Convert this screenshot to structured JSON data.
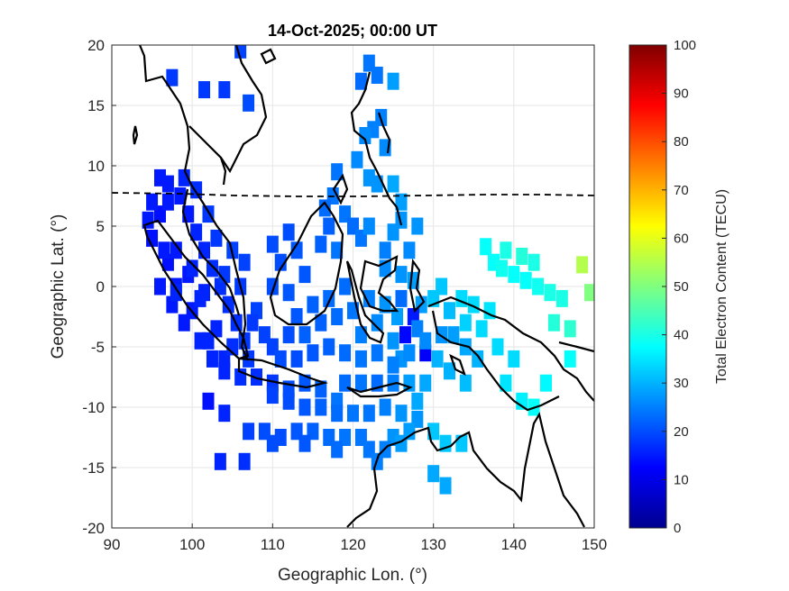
{
  "chart_data": {
    "type": "heatmap",
    "title": "14-Oct-2025; 00:00 UT",
    "xlabel": "Geographic Lon. (°)",
    "ylabel": "Geographic Lat. (°)",
    "xlim": [
      90,
      150
    ],
    "ylim": [
      -20,
      20
    ],
    "xticks": [
      "90",
      "100",
      "110",
      "120",
      "130",
      "140",
      "150"
    ],
    "yticks": [
      "20",
      "15",
      "10",
      "5",
      "0",
      "-5",
      "-10",
      "-15",
      "-20"
    ],
    "grid": true,
    "colorbar": {
      "label": "Total Electron Content (TECU)",
      "range": [
        0,
        100
      ],
      "ticks": [
        "0",
        "10",
        "20",
        "30",
        "40",
        "50",
        "60",
        "70",
        "80",
        "90",
        "100"
      ],
      "colormap": "jet"
    },
    "cells_note_units": "lon, lat, TECU",
    "cells": [
      [
        97.5,
        17.3,
        18
      ],
      [
        101.5,
        16.3,
        18
      ],
      [
        104,
        16.3,
        18
      ],
      [
        106,
        19.6,
        19
      ],
      [
        107,
        15.2,
        20
      ],
      [
        121,
        17,
        23
      ],
      [
        122,
        18.5,
        24
      ],
      [
        123,
        17.5,
        24
      ],
      [
        125,
        17,
        28
      ],
      [
        123.5,
        14,
        25
      ],
      [
        122.5,
        13,
        25
      ],
      [
        121.5,
        12.5,
        26
      ],
      [
        120.5,
        10.5,
        26
      ],
      [
        122,
        9,
        27
      ],
      [
        124,
        11.5,
        26
      ],
      [
        125,
        8.5,
        29
      ],
      [
        126,
        7,
        28
      ],
      [
        123,
        8.5,
        27
      ],
      [
        118,
        9.5,
        24
      ],
      [
        117.5,
        7.5,
        24
      ],
      [
        116.5,
        6.5,
        23
      ],
      [
        119,
        6,
        24
      ],
      [
        117,
        5,
        22
      ],
      [
        116,
        3.5,
        22
      ],
      [
        118,
        3,
        24
      ],
      [
        120,
        5,
        23
      ],
      [
        121,
        4,
        24
      ],
      [
        122,
        5,
        26
      ],
      [
        124,
        3,
        25
      ],
      [
        125,
        4.5,
        27
      ],
      [
        126,
        5.5,
        27
      ],
      [
        127,
        3,
        26
      ],
      [
        128,
        5,
        27
      ],
      [
        124,
        1.5,
        26
      ],
      [
        126,
        1,
        27
      ],
      [
        127.5,
        0.5,
        28
      ],
      [
        128.5,
        -1.5,
        28
      ],
      [
        126,
        -1,
        23
      ],
      [
        112,
        4.5,
        20
      ],
      [
        110,
        3.5,
        20
      ],
      [
        111,
        2,
        20
      ],
      [
        113,
        3,
        21
      ],
      [
        114,
        1,
        21
      ],
      [
        110,
        0,
        20
      ],
      [
        112,
        -0.5,
        21
      ],
      [
        115,
        -1.5,
        22
      ],
      [
        113,
        -2.5,
        21
      ],
      [
        116,
        -3,
        22
      ],
      [
        114,
        -4,
        22
      ],
      [
        117,
        -1,
        23
      ],
      [
        118,
        -2.5,
        23
      ],
      [
        119,
        0,
        23
      ],
      [
        120,
        -2,
        24
      ],
      [
        121,
        -4,
        25
      ],
      [
        122,
        -1,
        25
      ],
      [
        123,
        -3,
        26
      ],
      [
        124,
        -1.5,
        27
      ],
      [
        125,
        -4.5,
        27
      ],
      [
        125.5,
        -2.5,
        28
      ],
      [
        126.5,
        -4,
        13
      ],
      [
        127.5,
        -2.5,
        15
      ],
      [
        129,
        -5.5,
        12
      ],
      [
        128,
        -3.5,
        25
      ],
      [
        130,
        -1,
        32
      ],
      [
        131,
        0,
        32
      ],
      [
        132,
        -2,
        31
      ],
      [
        133.5,
        -1,
        34
      ],
      [
        134,
        -3,
        33
      ],
      [
        135,
        -1.5,
        34
      ],
      [
        136,
        -3.5,
        34
      ],
      [
        137,
        -2,
        35
      ],
      [
        136.5,
        3.3,
        38
      ],
      [
        137.5,
        2,
        38
      ],
      [
        138.5,
        1.5,
        39
      ],
      [
        140,
        1,
        38
      ],
      [
        141.5,
        0.5,
        38
      ],
      [
        143,
        0,
        39
      ],
      [
        139,
        3,
        40
      ],
      [
        141,
        2.5,
        41
      ],
      [
        142.5,
        2,
        40
      ],
      [
        144.5,
        -0.5,
        40
      ],
      [
        146,
        -1,
        40
      ],
      [
        145,
        -3,
        41
      ],
      [
        147,
        -3.5,
        42
      ],
      [
        148.5,
        1.8,
        55
      ],
      [
        149.5,
        -0.5,
        50
      ],
      [
        138,
        -5,
        34
      ],
      [
        140,
        -6,
        34
      ],
      [
        139,
        -8,
        35
      ],
      [
        141,
        -9.5,
        36
      ],
      [
        142.5,
        -10,
        38
      ],
      [
        144,
        -8,
        37
      ],
      [
        147,
        -6,
        38
      ],
      [
        134,
        -8,
        31
      ],
      [
        132,
        -7,
        30
      ],
      [
        130.5,
        -6,
        30
      ],
      [
        129,
        -8,
        29
      ],
      [
        128,
        -9.5,
        29
      ],
      [
        126,
        -6,
        27
      ],
      [
        127,
        -8,
        28
      ],
      [
        125,
        -8,
        25
      ],
      [
        123,
        -8,
        23
      ],
      [
        121,
        -8,
        24
      ],
      [
        119,
        -8,
        23
      ],
      [
        118,
        -9.5,
        24
      ],
      [
        116,
        -8.5,
        22
      ],
      [
        114,
        -8,
        21
      ],
      [
        112,
        -8.5,
        20
      ],
      [
        110,
        -8,
        18
      ],
      [
        108,
        -7.5,
        17
      ],
      [
        106,
        -7.5,
        17
      ],
      [
        104,
        -6,
        16
      ],
      [
        102,
        -4.5,
        16
      ],
      [
        100,
        -2,
        15
      ],
      [
        98,
        0,
        15
      ],
      [
        97,
        2,
        14
      ],
      [
        95,
        4,
        14
      ],
      [
        94.5,
        5.5,
        15
      ],
      [
        96,
        6,
        14
      ],
      [
        97,
        8.5,
        15
      ],
      [
        98.5,
        7.5,
        15
      ],
      [
        99.5,
        6,
        15
      ],
      [
        100.5,
        4.5,
        16
      ],
      [
        101.5,
        3,
        16
      ],
      [
        102.5,
        1.5,
        17
      ],
      [
        103.5,
        0,
        17
      ],
      [
        104.5,
        -1.5,
        17
      ],
      [
        105.5,
        -3,
        17
      ],
      [
        106.5,
        -4.5,
        18
      ],
      [
        107,
        -6,
        18
      ],
      [
        105,
        -5,
        17
      ],
      [
        103,
        -3.5,
        16
      ],
      [
        101,
        -1,
        16
      ],
      [
        99.5,
        1,
        15
      ],
      [
        98,
        3,
        15
      ],
      [
        96.5,
        3,
        15
      ],
      [
        96,
        0,
        15
      ],
      [
        97.5,
        -1.5,
        15
      ],
      [
        99,
        -3,
        15
      ],
      [
        101,
        -4.5,
        16
      ],
      [
        102.5,
        -6,
        16
      ],
      [
        104,
        -7,
        16
      ],
      [
        98,
        -0.5,
        16
      ],
      [
        100,
        1.5,
        16
      ],
      [
        101.5,
        -0.5,
        16
      ],
      [
        104,
        1,
        18
      ],
      [
        106,
        0,
        18
      ],
      [
        106.5,
        2,
        19
      ],
      [
        105,
        3,
        19
      ],
      [
        103,
        4,
        18
      ],
      [
        102,
        6,
        18
      ],
      [
        100.5,
        8,
        17
      ],
      [
        99,
        9,
        16
      ],
      [
        108,
        -2,
        19
      ],
      [
        109,
        -4,
        19
      ],
      [
        107.5,
        -3,
        18
      ],
      [
        110,
        -5,
        19
      ],
      [
        111,
        -6,
        20
      ],
      [
        112,
        -4,
        20
      ],
      [
        113,
        -6,
        20
      ],
      [
        115,
        -5.5,
        21
      ],
      [
        117,
        -5,
        22
      ],
      [
        119,
        -5.5,
        23
      ],
      [
        121,
        -6,
        24
      ],
      [
        123,
        -5.5,
        24
      ],
      [
        125,
        -6.5,
        25
      ],
      [
        127,
        -5.5,
        26
      ],
      [
        129,
        -4.5,
        26
      ],
      [
        131,
        -4,
        27
      ],
      [
        132.5,
        -4,
        28
      ],
      [
        134,
        -5,
        29
      ],
      [
        135.5,
        -6,
        30
      ],
      [
        110,
        -9,
        19
      ],
      [
        112,
        -9.5,
        20
      ],
      [
        114,
        -10,
        21
      ],
      [
        116,
        -10,
        22
      ],
      [
        118,
        -10.5,
        23
      ],
      [
        120,
        -10.5,
        24
      ],
      [
        122,
        -10.5,
        24
      ],
      [
        124,
        -10,
        25
      ],
      [
        126,
        -10.5,
        27
      ],
      [
        128,
        -11,
        27
      ],
      [
        127,
        -12,
        28
      ],
      [
        125,
        -12.5,
        27
      ],
      [
        121,
        -12.5,
        24
      ],
      [
        119,
        -12.5,
        24
      ],
      [
        117,
        -12.5,
        23
      ],
      [
        115,
        -12,
        22
      ],
      [
        113,
        -12,
        21
      ],
      [
        111,
        -12.5,
        20
      ],
      [
        109,
        -12,
        20
      ],
      [
        107,
        -12,
        19
      ],
      [
        110,
        -13,
        20
      ],
      [
        114,
        -13,
        21
      ],
      [
        118,
        -13.5,
        23
      ],
      [
        122,
        -13.5,
        24
      ],
      [
        124,
        -13.5,
        25
      ],
      [
        126,
        -13,
        28
      ],
      [
        123,
        -14.5,
        25
      ],
      [
        130,
        -12,
        32
      ],
      [
        131.5,
        -13,
        32
      ],
      [
        133.5,
        -13,
        32
      ],
      [
        130,
        -15.5,
        29
      ],
      [
        131.5,
        -16.5,
        29
      ],
      [
        102,
        -9.5,
        14
      ],
      [
        104,
        -10.5,
        16
      ],
      [
        103.5,
        -14.5,
        16
      ],
      [
        106.5,
        -14.5,
        17
      ],
      [
        96,
        9,
        15
      ],
      [
        95,
        7,
        15
      ],
      [
        97,
        7,
        15
      ]
    ],
    "equator_line": "dashed",
    "coastlines": true
  }
}
